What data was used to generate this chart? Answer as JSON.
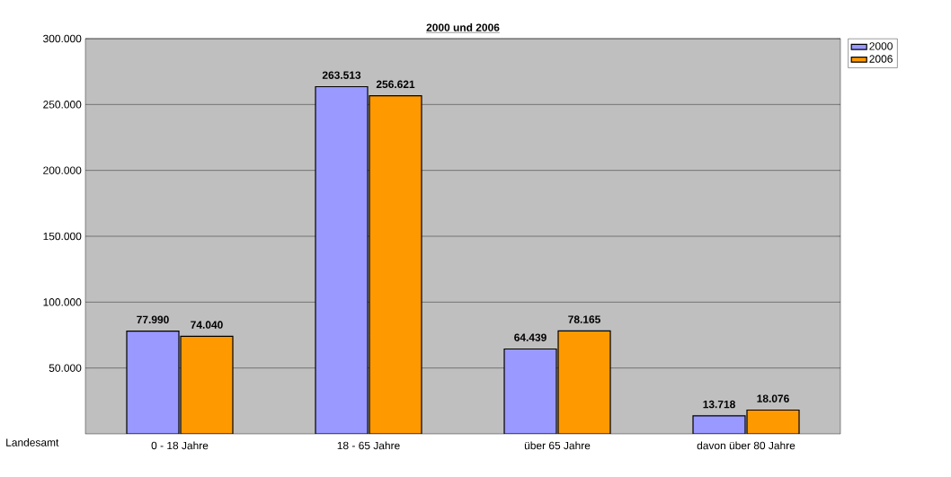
{
  "chart_data": {
    "type": "bar",
    "title": "2000 und 2006",
    "categories": [
      "0 - 18 Jahre",
      "18 - 65 Jahre",
      "über 65 Jahre",
      "davon über 80 Jahre"
    ],
    "series": [
      {
        "name": "2000",
        "color": "#9999ff",
        "values": [
          77990,
          263513,
          64439,
          13718
        ],
        "value_labels": [
          "77.990",
          "263.513",
          "64.439",
          "13.718"
        ]
      },
      {
        "name": "2006",
        "color": "#ff9900",
        "values": [
          74040,
          256621,
          78165,
          18076
        ],
        "value_labels": [
          "74.040",
          "256.621",
          "78.165",
          "18.076"
        ]
      }
    ],
    "ylim": [
      0,
      300000
    ],
    "yticks": [
      {
        "value": 50000,
        "label": "50.000"
      },
      {
        "value": 100000,
        "label": "100.000"
      },
      {
        "value": 150000,
        "label": "150.000"
      },
      {
        "value": 200000,
        "label": "200.000"
      },
      {
        "value": 250000,
        "label": "250.000"
      },
      {
        "value": 300000,
        "label": "300.000"
      }
    ],
    "grid": "y",
    "legend": "top right",
    "annotations": [
      "Landesamt"
    ]
  }
}
